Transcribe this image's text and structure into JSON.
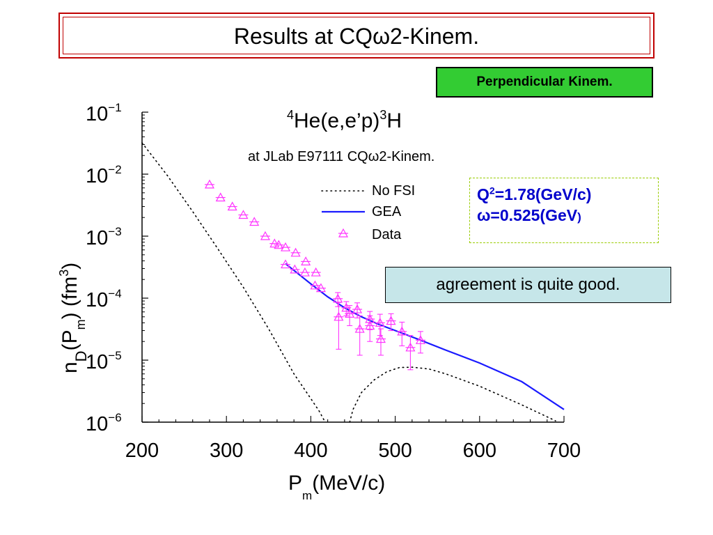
{
  "slide": {
    "title": "Results at CQω2-Kinem.",
    "badge": "Perpendicular Kinem.",
    "params": {
      "q_prefix": "Q",
      "q_sup": "2",
      "q_value": "=1.78(GeV/c)",
      "omega": "ω=0.525(GeV",
      "omega_close": ")"
    },
    "comment": "agreement is quite good."
  },
  "chart_data": {
    "type": "scatter",
    "title_parts": {
      "pre_sup": "4",
      "mid": "He(e,e’p)",
      "post_sup": "3",
      "end": "H"
    },
    "subtitle": "at JLab E97111 CQω2-Kinem.",
    "xlabel_main": "P",
    "xlabel_sub": "m",
    "xlabel_unit": "(MeV/c)",
    "ylabel": {
      "n": "n",
      "D": "D",
      "mid": "(P",
      "m": "m",
      "close": ") (fm",
      "three": "3",
      "end": ")"
    },
    "xlim": [
      200,
      700
    ],
    "ylim": [
      1e-06,
      0.1
    ],
    "yscale": "log",
    "xticks": [
      "200",
      "300",
      "400",
      "500",
      "600",
      "700"
    ],
    "yticks": [
      {
        "base": "10",
        "exp": "−1"
      },
      {
        "base": "10",
        "exp": "−2"
      },
      {
        "base": "10",
        "exp": "−3"
      },
      {
        "base": "10",
        "exp": "−4"
      },
      {
        "base": "10",
        "exp": "−5"
      },
      {
        "base": "10",
        "exp": "−6"
      }
    ],
    "legend_position": "top-right",
    "legend": [
      "No FSI",
      "GEA",
      "Data"
    ],
    "colors": {
      "nofsi": "#000000",
      "gea": "#1a1aff",
      "data": "#ff33ff"
    },
    "series": [
      {
        "name": "No FSI",
        "style": "dotted",
        "segments": [
          {
            "x": [
              200,
              230,
              260,
              290,
              320,
              350,
              380,
              400,
              410,
              417
            ],
            "y": [
              0.032,
              0.0095,
              0.0025,
              0.00062,
              0.00015,
              3.2e-05,
              6e-06,
              2.4e-06,
              1.5e-06,
              1e-06
            ]
          },
          {
            "x": [
              446,
              450,
              460,
              475,
              490,
              505,
              520,
              540,
              560,
              600,
              650,
              690
            ],
            "y": [
              1e-06,
              1.6e-06,
              3e-06,
              4.8e-06,
              6.5e-06,
              7.6e-06,
              7.7e-06,
              7.2e-06,
              6e-06,
              3.8e-06,
              1.9e-06,
              1.05e-06
            ]
          }
        ]
      },
      {
        "name": "GEA",
        "style": "solid",
        "x": [
          370,
          380,
          400,
          420,
          440,
          460,
          480,
          500,
          530,
          560,
          600,
          650,
          700
        ],
        "y": [
          0.00036,
          0.00028,
          0.00017,
          0.000105,
          7e-05,
          5e-05,
          3.8e-05,
          3e-05,
          2.1e-05,
          1.45e-05,
          9e-06,
          4.5e-06,
          1.6e-06
        ]
      },
      {
        "name": "Data",
        "style": "markers",
        "x": [
          280,
          293,
          307,
          320,
          333,
          346,
          357,
          362,
          370,
          370,
          381,
          382,
          393,
          394,
          405,
          406,
          412,
          432,
          433,
          442,
          446,
          455,
          458,
          470,
          470,
          482,
          483,
          495,
          508,
          518,
          530
        ],
        "y": [
          0.0068,
          0.0042,
          0.003,
          0.0022,
          0.0017,
          0.001,
          0.00076,
          0.00072,
          0.00035,
          0.00066,
          0.00029,
          0.00054,
          0.00026,
          0.00039,
          0.00016,
          0.00026,
          0.000145,
          9.8e-05,
          5e-05,
          7e-05,
          5.6e-05,
          6.6e-05,
          3.2e-05,
          4.6e-05,
          3.6e-05,
          4e-05,
          2.2e-05,
          4.3e-05,
          2.9e-05,
          1.6e-05,
          2.1e-05
        ],
        "err": [
          0,
          0,
          0,
          0,
          0,
          0,
          0,
          0,
          0,
          0,
          0,
          0,
          0,
          0,
          0,
          0,
          0,
          2.5e-05,
          3.5e-05,
          1.8e-05,
          2e-05,
          1.8e-05,
          2e-05,
          1.5e-05,
          1.6e-05,
          1.5e-05,
          1e-05,
          1.3e-05,
          1.2e-05,
          9e-06,
          8e-06
        ]
      }
    ]
  }
}
